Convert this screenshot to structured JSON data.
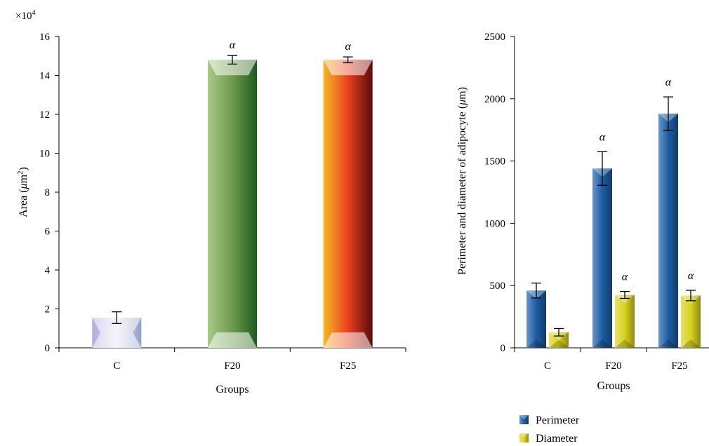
{
  "chart_data": [
    {
      "type": "bar",
      "categories": [
        "C",
        "F20",
        "F25"
      ],
      "values": [
        1.55,
        14.8,
        14.8
      ],
      "errors": [
        0.3,
        0.22,
        0.15
      ],
      "annotations": [
        "",
        "α",
        "α"
      ],
      "multiplier": "×10",
      "multiplier_exp": "4",
      "xlabel": "Groups",
      "ylabel_pre": "Area (",
      "ylabel_mu": "μ",
      "ylabel_unit": "m",
      "ylabel_exp": "2",
      "ylabel_post": ")",
      "ylim": [
        0,
        16
      ],
      "yticks": [
        0,
        2,
        4,
        6,
        8,
        10,
        12,
        14,
        16
      ],
      "colors": [
        [
          "#b4a9db",
          "#e8e4f6",
          "#8fa0c8"
        ],
        [
          "#a9c98a",
          "#6f9a4e",
          "#1e5a1e"
        ],
        [
          "#f6b825",
          "#e8401e",
          "#5c0a0a"
        ]
      ]
    },
    {
      "type": "bar",
      "categories": [
        "C",
        "F20",
        "F25"
      ],
      "series": [
        {
          "name": "Perimeter",
          "values": [
            460,
            1440,
            1880
          ],
          "errors": [
            60,
            135,
            135
          ],
          "annotations": [
            "",
            "α",
            "α"
          ],
          "color": "#1b5da3"
        },
        {
          "name": "Diameter",
          "values": [
            125,
            425,
            420
          ],
          "errors": [
            30,
            28,
            42
          ],
          "annotations": [
            "",
            "α",
            "α"
          ],
          "color": "#d9d21e"
        }
      ],
      "xlabel": "Groups",
      "ylabel_pre": "Perimeter and diameter of adipocyte (",
      "ylabel_mu": "μ",
      "ylabel_unit": "m",
      "ylabel_post": ")",
      "ylim": [
        0,
        2500
      ],
      "yticks": [
        0,
        500,
        1000,
        1500,
        2000,
        2500
      ],
      "legend_position": "bottom"
    }
  ]
}
